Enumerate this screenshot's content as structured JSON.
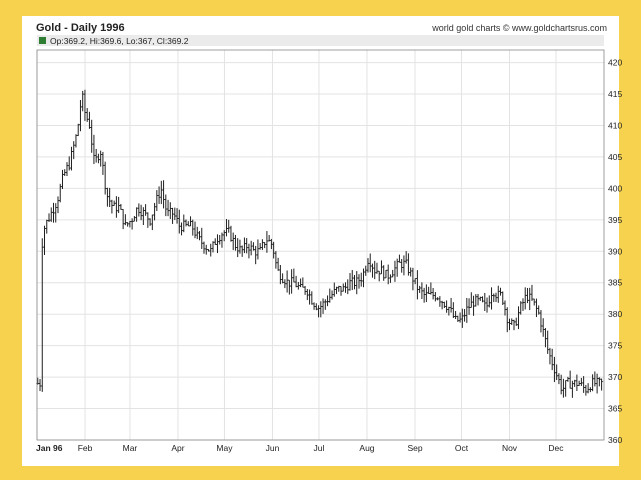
{
  "colors": {
    "frame": "#f6d24e",
    "background": "#ffffff",
    "grid": "#e3e3e3",
    "bars": "#1e1e1e",
    "legend_swatch": "#2e7d32",
    "legend_bar": "#ebebeb"
  },
  "chart_data": {
    "type": "ohlc",
    "title": "Gold - Daily 1996",
    "source": "world gold charts © www.goldchartsrus.com",
    "last_bar_label": "Op:369.2, Hi:369.6, Lo:367, Cl:369.2",
    "ylim": [
      360,
      422
    ],
    "y_ticks": [
      "420",
      "415",
      "410",
      "405",
      "400",
      "395",
      "390",
      "385",
      "380",
      "375",
      "370",
      "365",
      "360"
    ],
    "x_ticks": [
      {
        "label": "Jan 96",
        "day": 0
      },
      {
        "label": "Feb",
        "day": 31
      },
      {
        "label": "Mar",
        "day": 60
      },
      {
        "label": "Apr",
        "day": 91
      },
      {
        "label": "May",
        "day": 121
      },
      {
        "label": "Jun",
        "day": 152
      },
      {
        "label": "Jul",
        "day": 182
      },
      {
        "label": "Aug",
        "day": 213
      },
      {
        "label": "Sep",
        "day": 244
      },
      {
        "label": "Oct",
        "day": 274
      },
      {
        "label": "Nov",
        "day": 305
      },
      {
        "label": "Dec",
        "day": 335
      }
    ],
    "x_range_days": [
      0,
      366
    ],
    "grid": true,
    "trend_closes": [
      [
        2,
        389
      ],
      [
        5,
        394
      ],
      [
        9,
        396
      ],
      [
        13,
        398
      ],
      [
        17,
        402
      ],
      [
        21,
        404
      ],
      [
        24,
        407
      ],
      [
        26,
        409
      ],
      [
        29,
        415
      ],
      [
        31,
        412
      ],
      [
        34,
        410
      ],
      [
        37,
        404
      ],
      [
        41,
        406
      ],
      [
        45,
        399
      ],
      [
        49,
        397
      ],
      [
        53,
        397
      ],
      [
        57,
        394
      ],
      [
        61,
        395
      ],
      [
        65,
        397
      ],
      [
        69,
        396
      ],
      [
        73,
        395
      ],
      [
        77,
        398
      ],
      [
        80,
        400
      ],
      [
        84,
        396
      ],
      [
        88,
        396
      ],
      [
        92,
        394
      ],
      [
        96,
        394
      ],
      [
        100,
        394
      ],
      [
        104,
        392
      ],
      [
        108,
        391
      ],
      [
        112,
        390
      ],
      [
        116,
        392
      ],
      [
        120,
        393
      ],
      [
        124,
        393
      ],
      [
        128,
        391
      ],
      [
        132,
        390
      ],
      [
        136,
        391
      ],
      [
        140,
        390
      ],
      [
        144,
        390
      ],
      [
        148,
        392
      ],
      [
        152,
        391
      ],
      [
        155,
        387
      ],
      [
        158,
        386
      ],
      [
        162,
        385
      ],
      [
        166,
        385
      ],
      [
        170,
        384
      ],
      [
        174,
        384
      ],
      [
        178,
        382
      ],
      [
        182,
        381
      ],
      [
        186,
        382
      ],
      [
        190,
        383
      ],
      [
        194,
        384
      ],
      [
        198,
        384
      ],
      [
        202,
        385
      ],
      [
        206,
        385
      ],
      [
        210,
        386
      ],
      [
        214,
        389
      ],
      [
        218,
        387
      ],
      [
        222,
        387
      ],
      [
        226,
        386
      ],
      [
        230,
        387
      ],
      [
        234,
        388
      ],
      [
        238,
        388
      ],
      [
        242,
        386
      ],
      [
        246,
        384
      ],
      [
        250,
        383
      ],
      [
        254,
        383
      ],
      [
        258,
        383
      ],
      [
        262,
        382
      ],
      [
        266,
        381
      ],
      [
        270,
        379
      ],
      [
        274,
        379
      ],
      [
        278,
        381
      ],
      [
        282,
        382
      ],
      [
        286,
        382
      ],
      [
        290,
        381
      ],
      [
        294,
        384
      ],
      [
        297,
        383
      ],
      [
        300,
        383
      ],
      [
        304,
        379
      ],
      [
        308,
        378
      ],
      [
        312,
        381
      ],
      [
        316,
        383
      ],
      [
        320,
        382
      ],
      [
        324,
        380
      ],
      [
        327,
        377
      ],
      [
        330,
        374
      ],
      [
        333,
        372
      ],
      [
        336,
        370
      ],
      [
        339,
        368
      ],
      [
        342,
        369
      ],
      [
        346,
        369
      ],
      [
        350,
        369
      ],
      [
        354,
        368
      ],
      [
        358,
        369
      ],
      [
        362,
        369
      ],
      [
        366,
        369
      ]
    ],
    "typical_bar_range": 1.6
  }
}
